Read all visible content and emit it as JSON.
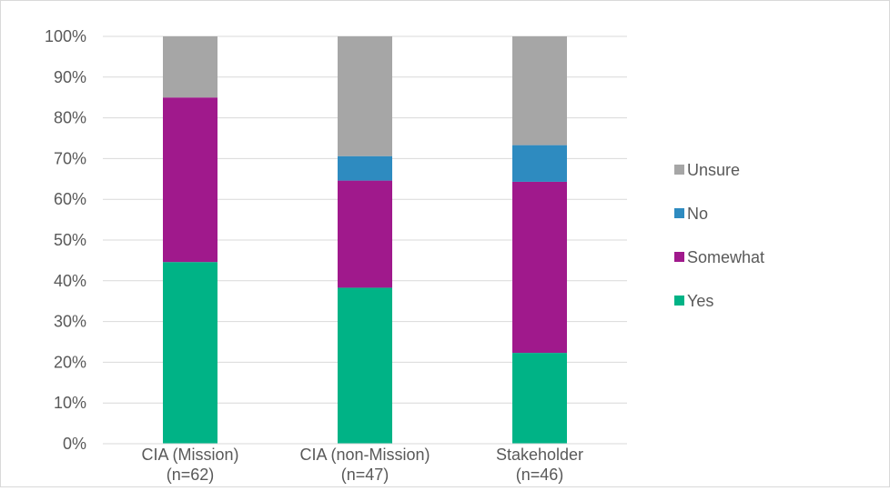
{
  "chart_data": {
    "type": "bar",
    "stacked": true,
    "categories": [
      [
        "CIA (Mission)",
        "(n=62)"
      ],
      [
        "CIA (non-Mission)",
        "(n=47)"
      ],
      [
        "Stakeholder",
        "(n=46)"
      ]
    ],
    "series": [
      {
        "name": "Yes",
        "color": "#00b386",
        "values": [
          44.6,
          38.3,
          22.3
        ]
      },
      {
        "name": "Somewhat",
        "color": "#a0198c",
        "values": [
          40.4,
          26.3,
          42.0
        ]
      },
      {
        "name": "No",
        "color": "#2e8bc0",
        "values": [
          0,
          6.0,
          9.0
        ]
      },
      {
        "name": "Unsure",
        "color": "#a6a6a6",
        "values": [
          15.0,
          29.4,
          26.7
        ]
      }
    ],
    "legend_order": [
      "Unsure",
      "No",
      "Somewhat",
      "Yes"
    ],
    "ylim": [
      0,
      100
    ],
    "y_ticks": [
      "0%",
      "10%",
      "20%",
      "30%",
      "40%",
      "50%",
      "60%",
      "70%",
      "80%",
      "90%",
      "100%"
    ],
    "grid": true,
    "legend_position": "right",
    "gridline_color": "#d9d9d9",
    "title": "",
    "xlabel": "",
    "ylabel": ""
  }
}
